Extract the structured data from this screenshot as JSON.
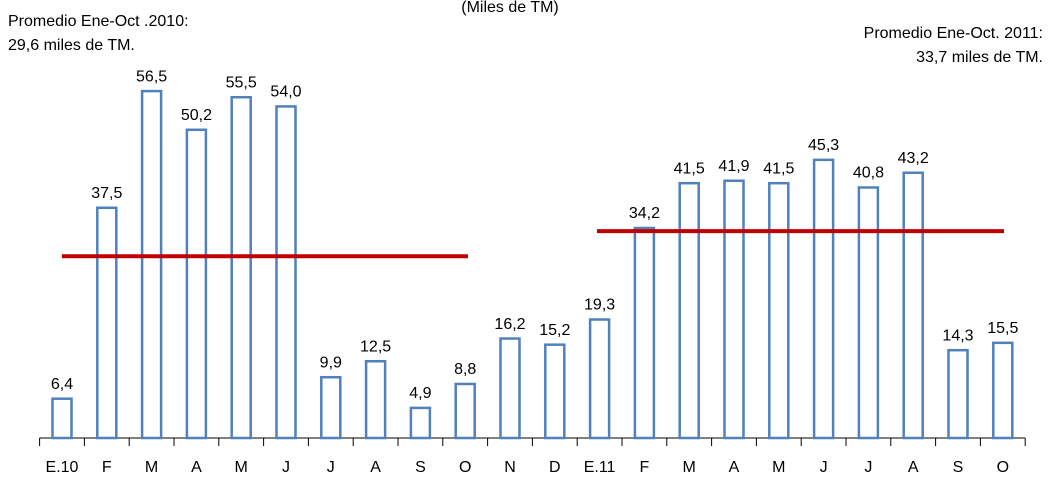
{
  "chart_data": {
    "type": "bar",
    "subtitle": "(Miles de TM)",
    "categories": [
      "E.10",
      "F",
      "M",
      "A",
      "M",
      "J",
      "J",
      "A",
      "S",
      "O",
      "N",
      "D",
      "E.11",
      "F",
      "M",
      "A",
      "M",
      "J",
      "J",
      "A",
      "S",
      "O"
    ],
    "values": [
      6.4,
      37.5,
      56.5,
      50.2,
      55.5,
      54.0,
      9.9,
      12.5,
      4.9,
      8.8,
      16.2,
      15.2,
      19.3,
      34.2,
      41.5,
      41.9,
      41.5,
      45.3,
      40.8,
      43.2,
      14.3,
      15.5
    ],
    "value_labels": [
      "6,4",
      "37,5",
      "56,5",
      "50,2",
      "55,5",
      "54,0",
      "9,9",
      "12,5",
      "4,9",
      "8,8",
      "16,2",
      "15,2",
      "19,3",
      "34,2",
      "41,5",
      "41,9",
      "41,5",
      "45,3",
      "40,8",
      "43,2",
      "14,3",
      "15,5"
    ],
    "color": "#4f81bd",
    "reference_lines": [
      {
        "value": 29.6,
        "color": "#c00000",
        "lines": [
          "Promedio Ene-Oct .2010:",
          "29,6 miles de TM."
        ]
      },
      {
        "value": 33.7,
        "color": "#c00000",
        "lines": [
          "Promedio Ene-Oct. 2011:",
          "33,7 miles de TM."
        ]
      }
    ]
  }
}
